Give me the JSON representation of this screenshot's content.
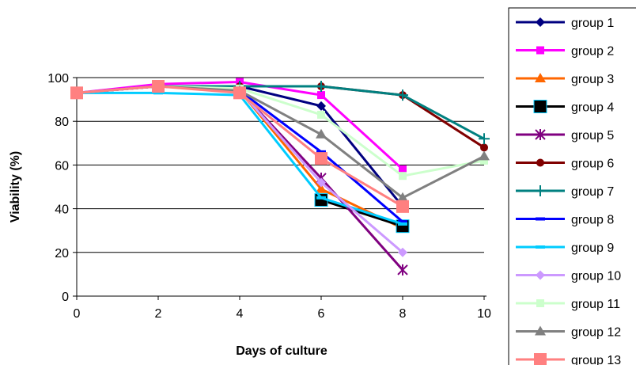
{
  "chart_data": {
    "type": "line",
    "title": "",
    "xlabel": "Days of culture",
    "ylabel": "Viability (%)",
    "x": [
      0,
      2,
      4,
      6,
      8,
      10
    ],
    "xlim": [
      0,
      10
    ],
    "ylim": [
      0,
      100
    ],
    "xticks": [
      0,
      2,
      4,
      6,
      8,
      10
    ],
    "yticks": [
      0,
      20,
      40,
      60,
      80,
      100
    ],
    "grid": "horizontal major gridlines",
    "legend_position": "right",
    "series": [
      {
        "name": "group 1",
        "color": "#000080",
        "marker": "diamond",
        "values": [
          93,
          96,
          96,
          87,
          41,
          null
        ]
      },
      {
        "name": "group 2",
        "color": "#FF00FF",
        "marker": "square",
        "values": [
          93,
          97,
          98,
          92,
          58,
          null
        ]
      },
      {
        "name": "group 3",
        "color": "#FF6600",
        "marker": "triangle",
        "values": [
          93,
          96,
          94,
          49,
          31,
          null
        ]
      },
      {
        "name": "group 4",
        "color": "#000000",
        "marker": "square-big",
        "values": [
          null,
          null,
          null,
          44,
          32,
          null
        ]
      },
      {
        "name": "group 5",
        "color": "#800080",
        "marker": "asterisk",
        "values": [
          93,
          96,
          94,
          54,
          12,
          null
        ]
      },
      {
        "name": "group 6",
        "color": "#800000",
        "marker": "circle",
        "values": [
          93,
          96,
          96,
          96,
          92,
          68
        ]
      },
      {
        "name": "group 7",
        "color": "#008080",
        "marker": "plus",
        "values": [
          93,
          96,
          96,
          96,
          92,
          72
        ]
      },
      {
        "name": "group 8",
        "color": "#0000FF",
        "marker": "dash",
        "values": [
          93,
          96,
          94,
          66,
          34,
          null
        ]
      },
      {
        "name": "group 9",
        "color": "#00CCFF",
        "marker": "dash",
        "values": [
          93,
          93,
          92,
          45,
          33,
          null
        ]
      },
      {
        "name": "group 10",
        "color": "#CC99FF",
        "marker": "diamond",
        "values": [
          93,
          96,
          94,
          52,
          20,
          null
        ]
      },
      {
        "name": "group 11",
        "color": "#CCFFCC",
        "marker": "square",
        "values": [
          93,
          96,
          95,
          83,
          55,
          62
        ]
      },
      {
        "name": "group 12",
        "color": "#808080",
        "marker": "triangle",
        "values": [
          93,
          96,
          94,
          74,
          45,
          64
        ]
      },
      {
        "name": "group 13",
        "color": "#FF8080",
        "marker": "square-big",
        "values": [
          93,
          96,
          93,
          63,
          41,
          null
        ]
      }
    ]
  }
}
